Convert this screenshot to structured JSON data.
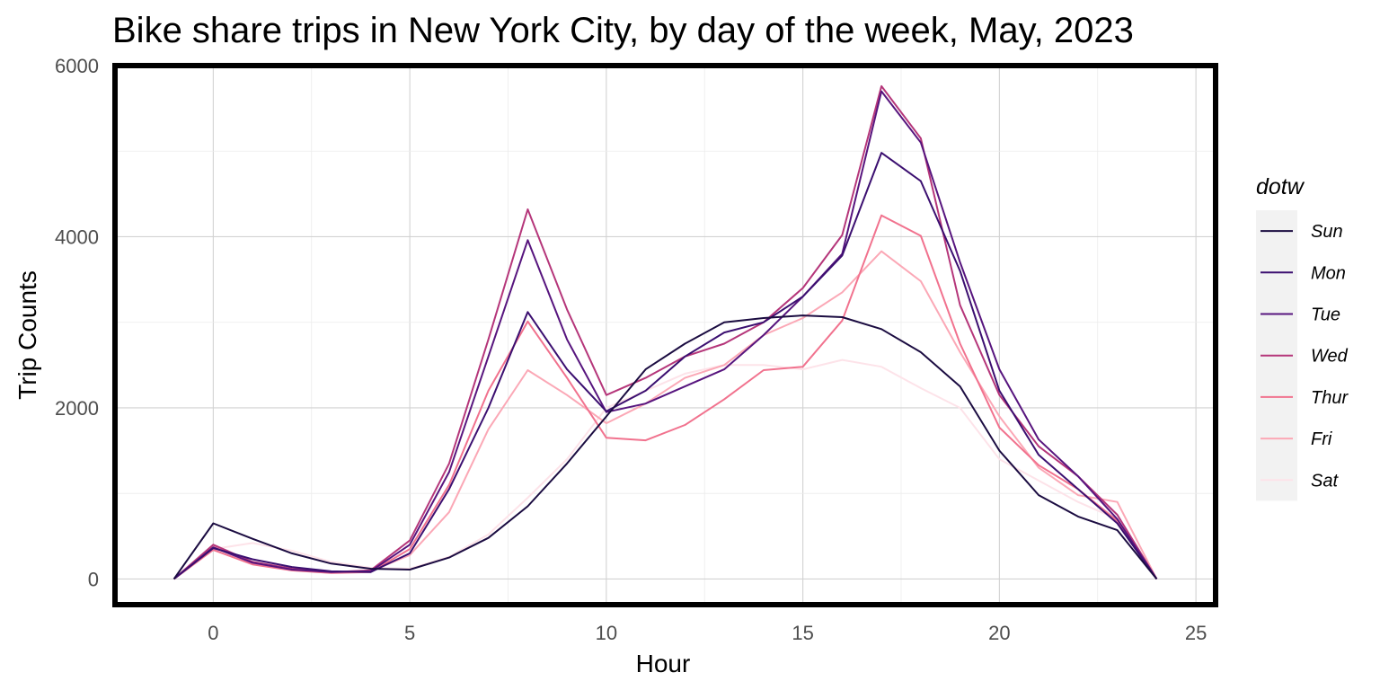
{
  "chart_data": {
    "type": "line",
    "title": "Bike share trips in New York City, by day of the week, May, 2023",
    "xlabel": "Hour",
    "ylabel": "Trip Counts",
    "xlim": [
      -2.5,
      25.5
    ],
    "ylim": [
      -300,
      6000
    ],
    "xticks": [
      0,
      5,
      10,
      15,
      20,
      25
    ],
    "yticks": [
      0,
      2000,
      4000,
      6000
    ],
    "xtick_labels": [
      "0",
      "5",
      "10",
      "15",
      "20",
      "25"
    ],
    "ytick_labels": [
      "0",
      "2000",
      "4000",
      "6000"
    ],
    "grid": true,
    "legend": {
      "title": "dotw",
      "position": "right"
    },
    "x": [
      -1,
      0,
      1,
      2,
      3,
      4,
      5,
      6,
      7,
      8,
      9,
      10,
      11,
      12,
      13,
      14,
      15,
      16,
      17,
      18,
      19,
      20,
      21,
      22,
      23,
      24
    ],
    "series": [
      {
        "name": "Sun",
        "color": "#1b0c41",
        "values": [
          0,
          650,
          470,
          300,
          180,
          120,
          110,
          250,
          480,
          850,
          1350,
          1900,
          2450,
          2750,
          3000,
          3050,
          3080,
          3060,
          2920,
          2650,
          2250,
          1500,
          980,
          730,
          570,
          0
        ]
      },
      {
        "name": "Mon",
        "color": "#3b0f70",
        "values": [
          0,
          360,
          230,
          140,
          90,
          80,
          300,
          1050,
          2000,
          3120,
          2450,
          1960,
          2200,
          2600,
          2880,
          3000,
          3300,
          3780,
          4980,
          4650,
          3600,
          2200,
          1450,
          1050,
          650,
          0
        ]
      },
      {
        "name": "Tue",
        "color": "#57157e",
        "values": [
          0,
          370,
          190,
          110,
          80,
          90,
          400,
          1250,
          2600,
          3960,
          2800,
          1950,
          2050,
          2250,
          2450,
          2850,
          3300,
          3800,
          5700,
          5100,
          3700,
          2450,
          1630,
          1200,
          700,
          0
        ]
      },
      {
        "name": "Wed",
        "color": "#b5367a",
        "values": [
          0,
          400,
          200,
          120,
          80,
          100,
          450,
          1350,
          2800,
          4320,
          3150,
          2150,
          2350,
          2600,
          2750,
          3000,
          3400,
          4020,
          5760,
          5150,
          3200,
          2150,
          1550,
          1200,
          750,
          0
        ]
      },
      {
        "name": "Thur",
        "color": "#f1728e",
        "values": [
          0,
          340,
          170,
          100,
          70,
          80,
          350,
          1100,
          2200,
          3010,
          2350,
          1650,
          1620,
          1800,
          2100,
          2440,
          2480,
          3020,
          4250,
          4010,
          2750,
          1770,
          1330,
          1050,
          680,
          0
        ]
      },
      {
        "name": "Fri",
        "color": "#fba8b6",
        "values": [
          0,
          380,
          190,
          110,
          80,
          90,
          280,
          780,
          1750,
          2440,
          2150,
          1820,
          2050,
          2350,
          2500,
          2850,
          3050,
          3350,
          3830,
          3480,
          2650,
          1900,
          1300,
          980,
          900,
          0
        ]
      },
      {
        "name": "Sat",
        "color": "#fde3e9",
        "values": [
          0,
          350,
          420,
          330,
          200,
          130,
          120,
          260,
          520,
          950,
          1400,
          2000,
          2200,
          2400,
          2500,
          2500,
          2450,
          2560,
          2480,
          2230,
          2000,
          1400,
          1150,
          900,
          700,
          0
        ]
      }
    ]
  }
}
